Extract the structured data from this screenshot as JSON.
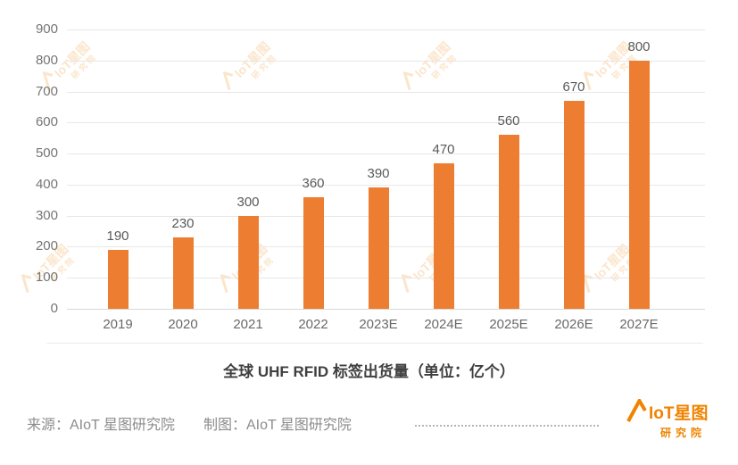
{
  "chart_data": {
    "type": "bar",
    "categories": [
      "2019",
      "2020",
      "2021",
      "2022",
      "2023E",
      "2024E",
      "2025E",
      "2026E",
      "2027E"
    ],
    "values": [
      190,
      230,
      300,
      360,
      390,
      470,
      560,
      670,
      800
    ],
    "title": "全球 UHF RFID 标签出货量（单位：亿个）",
    "xlabel": "",
    "ylabel": "",
    "ylim": [
      0,
      900
    ],
    "ytick_step": 100,
    "grid": true,
    "legend": false,
    "bar_color": "#ED7D31",
    "value_label_color": "#595959",
    "axis_tick_color": "#757575"
  },
  "footer": {
    "source_label": "来源：AIoT 星图研究院",
    "credit_label": "制图：AIoT 星图研究院"
  },
  "watermark": {
    "text_line1": "IoT星图",
    "text_line2": "研究院",
    "color": "#F08300"
  },
  "logo": {
    "text_line1": "IoT星图",
    "text_line2": "研究院",
    "color": "#F08300"
  }
}
